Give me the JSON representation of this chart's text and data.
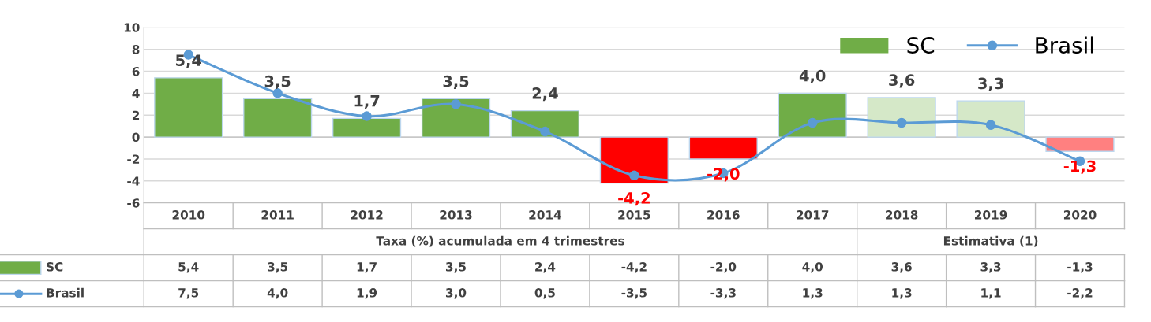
{
  "chart_data": {
    "type": "bar",
    "categories": [
      "2010",
      "2011",
      "2012",
      "2013",
      "2014",
      "2015",
      "2016",
      "2017",
      "2018",
      "2019",
      "2020"
    ],
    "series": [
      {
        "name": "SC",
        "values": [
          5.4,
          3.5,
          1.7,
          3.5,
          2.4,
          -4.2,
          -2.0,
          4.0,
          3.6,
          3.3,
          -1.3
        ],
        "value_labels": [
          "5,4",
          "3,5",
          "1,7",
          "3,5",
          "2,4",
          "-4,2",
          "-2,0",
          "4,0",
          "3,6",
          "3,3",
          "-1,3"
        ],
        "colors": [
          "#70ad47",
          "#70ad47",
          "#70ad47",
          "#70ad47",
          "#70ad47",
          "#ff0000",
          "#ff0000",
          "#70ad47",
          "#d5e8c8",
          "#d5e8c8",
          "#ff8080"
        ]
      },
      {
        "name": "Brasil",
        "type": "line",
        "color": "#5b9bd5",
        "values": [
          7.5,
          4.0,
          1.9,
          3.0,
          0.5,
          -3.5,
          -3.3,
          1.3,
          1.3,
          1.1,
          -2.2
        ],
        "value_labels": [
          "7,5",
          "4,0",
          "1,9",
          "3,0",
          "0,5",
          "-3,5",
          "-3,3",
          "1,3",
          "1,3",
          "1,1",
          "-2,2"
        ]
      }
    ],
    "ylim": [
      -6,
      10
    ],
    "yticks": [
      -6,
      -4,
      -2,
      0,
      2,
      4,
      6,
      8,
      10
    ],
    "grid": "y",
    "legend": "top right",
    "marker": "circle",
    "line_style": "solid",
    "annotations": [
      "Taxa (%) acumulada em 4 trimestres",
      "Estimativa (1)"
    ]
  }
}
